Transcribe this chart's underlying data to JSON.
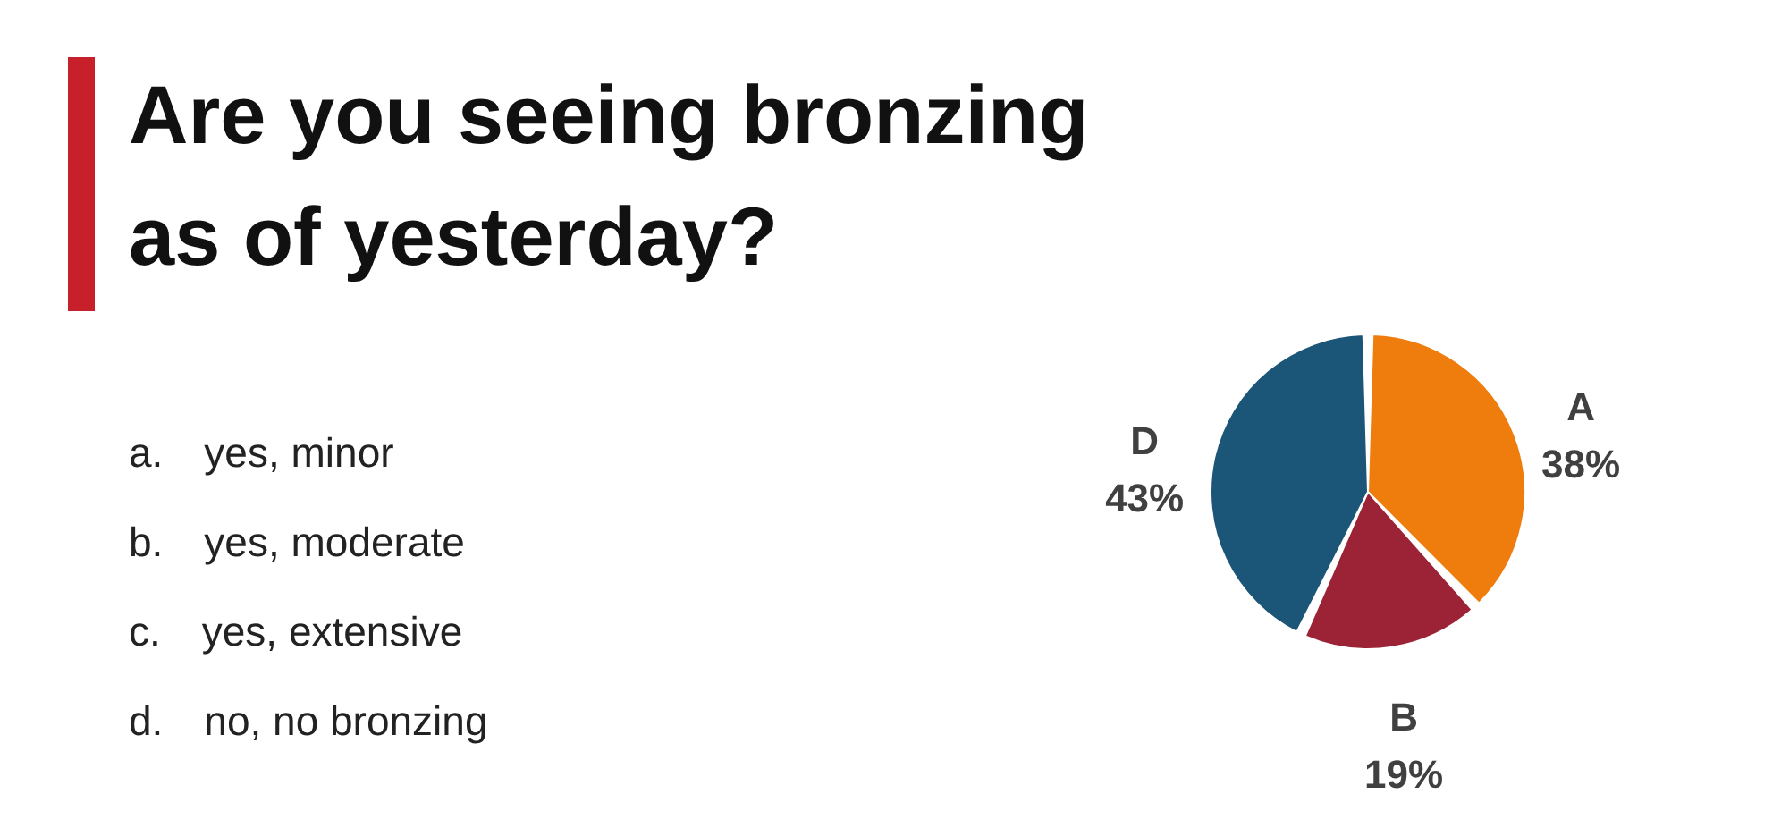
{
  "chart_data": {
    "type": "pie",
    "title": "Are you seeing bronzing as of yesterday?",
    "categories": [
      "A",
      "B",
      "D"
    ],
    "values": [
      38,
      19,
      43
    ],
    "value_labels": [
      "38%",
      "19%",
      "43%"
    ],
    "colors": [
      "#ee7d0e",
      "#9b2335",
      "#1b5577"
    ],
    "annotations": [
      "a. yes, minor",
      "b. yes, moderate",
      "c. yes, extensive",
      "d. no, no bronzing"
    ],
    "legend": false
  }
}
